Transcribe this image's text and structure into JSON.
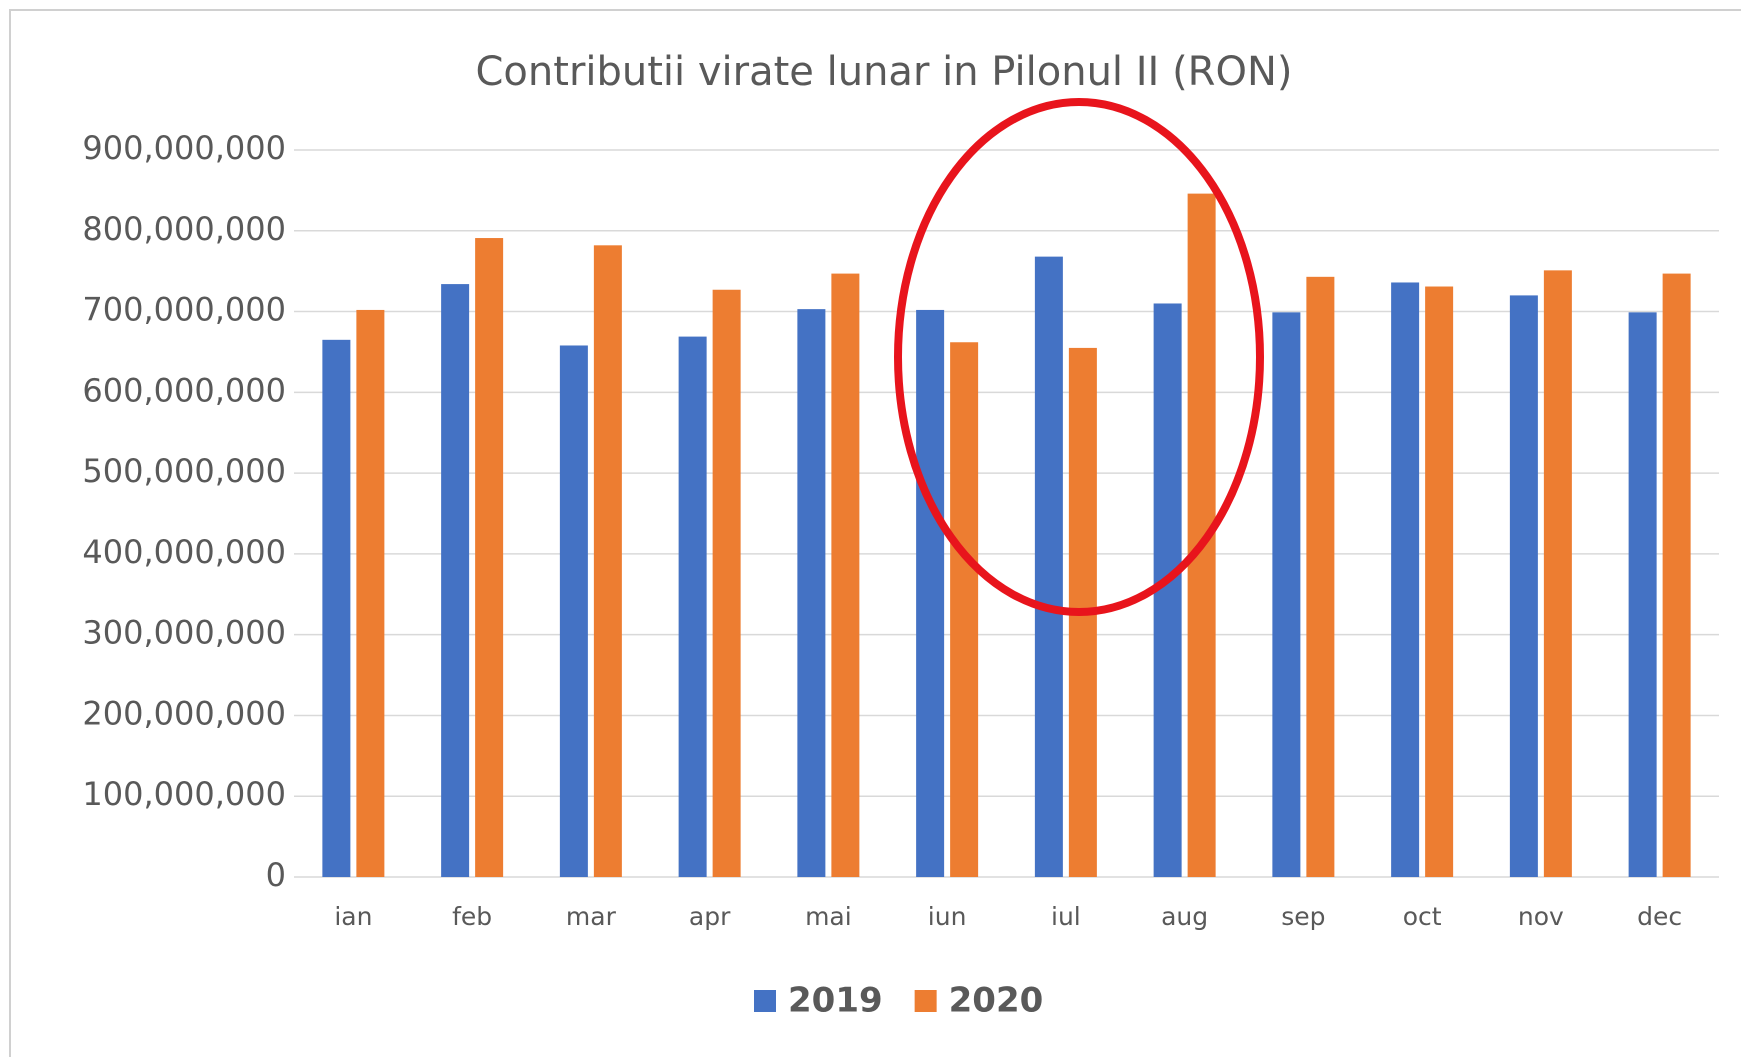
{
  "chart_data": {
    "type": "bar",
    "title": "Contributii virate lunar in Pilonul II (RON)",
    "categories": [
      "ian",
      "feb",
      "mar",
      "apr",
      "mai",
      "iun",
      "iul",
      "aug",
      "sep",
      "oct",
      "nov",
      "dec"
    ],
    "series": [
      {
        "name": "2019",
        "color": "#4472c4",
        "values": [
          665000000,
          734000000,
          658000000,
          669000000,
          703000000,
          702000000,
          768000000,
          710000000,
          699000000,
          736000000,
          720000000,
          699000000
        ]
      },
      {
        "name": "2020",
        "color": "#ed7d31",
        "values": [
          702000000,
          791000000,
          782000000,
          727000000,
          747000000,
          662000000,
          655000000,
          846000000,
          743000000,
          731000000,
          751000000,
          747000000
        ]
      }
    ],
    "ylim": [
      0,
      900000000
    ],
    "yticks": [
      0,
      {
        "value": 100000000,
        "label": "100,000,000"
      },
      {
        "value": 200000000,
        "label": "200,000,000"
      },
      {
        "value": 300000000,
        "label": "300,000,000"
      },
      {
        "value": 400000000,
        "label": "400,000,000"
      },
      {
        "value": 500000000,
        "label": "500,000,000"
      },
      {
        "value": 600000000,
        "label": "600,000,000"
      },
      {
        "value": 700000000,
        "label": "700,000,000"
      },
      {
        "value": 800000000,
        "label": "800,000,000"
      },
      {
        "value": 900000000,
        "label": "900,000,000"
      }
    ],
    "grid": true,
    "legend": "bottom"
  }
}
